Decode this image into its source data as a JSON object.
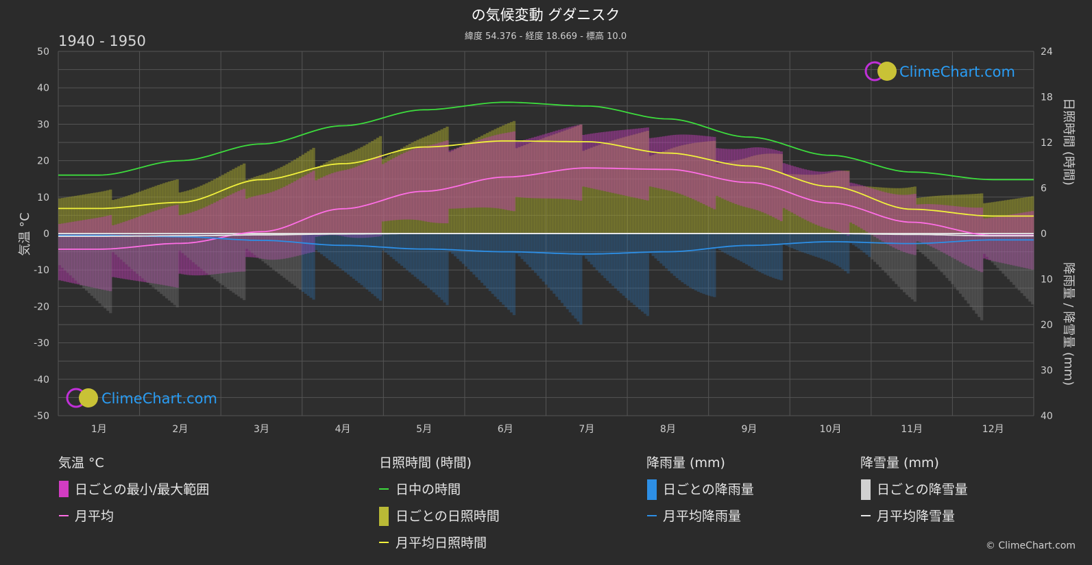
{
  "header": {
    "title": "の気候変動 グダニスク",
    "subtitle": "緯度 54.376 - 経度 18.669 - 標高 10.0",
    "period": "1940 - 1950"
  },
  "axes": {
    "left_title": "気温 °C",
    "right_top_title": "日照時間 (時間)",
    "right_bottom_title": "降雨量 / 降雪量 (mm)",
    "left_ticks": [
      "50",
      "40",
      "30",
      "20",
      "10",
      "0",
      "-10",
      "-20",
      "-30",
      "-40",
      "-50"
    ],
    "right_top_ticks": [
      "24",
      "18",
      "12",
      "6",
      "0"
    ],
    "right_bottom_ticks": [
      "10",
      "20",
      "30",
      "40"
    ]
  },
  "brand": {
    "name": "ClimeChart.com",
    "copyright": "© ClimeChart.com"
  },
  "legend": {
    "temperature": {
      "heading": "気温 °C",
      "daily_range": "日ごとの最小/最大範囲",
      "monthly_avg": "月平均"
    },
    "sunshine": {
      "heading": "日照時間 (時間)",
      "daylight": "日中の時間",
      "daily_sunshine": "日ごとの日照時間",
      "monthly_avg_sunshine": "月平均日照時間"
    },
    "rain": {
      "heading": "降雨量 (mm)",
      "daily_rain": "日ごとの降雨量",
      "monthly_avg_rain": "月平均降雨量"
    },
    "snow": {
      "heading": "降雪量 (mm)",
      "daily_snow": "日ごとの降雪量",
      "monthly_avg_snow": "月平均降雪量"
    }
  },
  "colors": {
    "background": "#2b2b2b",
    "daylight": "#3ddc3d",
    "sunshine_avg": "#f2f23c",
    "sunshine_band": "#9c9c2e",
    "temp_avg": "#ff6ee6",
    "temp_band": "#c23db5",
    "rain_avg": "#2d8fe6",
    "rain_band": "#2a6fae",
    "snow_avg": "#e8e8e8",
    "snow_band": "#7a7a7a",
    "brand": "#2a9df4"
  },
  "chart_data": {
    "type": "area",
    "categories": [
      "1月",
      "2月",
      "3月",
      "4月",
      "5月",
      "6月",
      "7月",
      "8月",
      "9月",
      "10月",
      "11月",
      "12月"
    ],
    "temperature_axis": {
      "unit": "°C",
      "ylim": [
        -50,
        50
      ]
    },
    "sunshine_axis": {
      "unit": "時間",
      "ylim": [
        0,
        24
      ]
    },
    "precipitation_axis": {
      "unit": "mm",
      "ylim": [
        0,
        40
      ],
      "inverted": true
    },
    "grid": true,
    "series": [
      {
        "name": "日中の時間",
        "axis": "sunshine",
        "values": [
          7.7,
          9.6,
          11.8,
          14.2,
          16.3,
          17.3,
          16.8,
          15.1,
          12.7,
          10.3,
          8.1,
          7.1
        ]
      },
      {
        "name": "月平均日照時間",
        "axis": "sunshine",
        "values": [
          3.3,
          4.1,
          7.1,
          9.2,
          11.4,
          12.2,
          12.1,
          10.6,
          8.9,
          6.2,
          3.2,
          2.3
        ]
      },
      {
        "name": "月平均",
        "axis": "temperature",
        "values": [
          -4.3,
          -2.7,
          0.5,
          6.8,
          11.6,
          15.5,
          18.0,
          17.6,
          14.0,
          8.4,
          3.1,
          -0.5
        ]
      },
      {
        "name": "月平均降雨量",
        "axis": "precipitation",
        "values": [
          0.4,
          0.7,
          1.5,
          2.6,
          3.4,
          4.0,
          4.5,
          4.0,
          2.6,
          1.8,
          2.2,
          1.4
        ]
      },
      {
        "name": "月平均降雪量",
        "axis": "precipitation",
        "values": [
          0.6,
          0.5,
          0.3,
          0.1,
          0.0,
          0.0,
          0.0,
          0.0,
          0.0,
          0.0,
          0.2,
          0.5
        ]
      }
    ],
    "daily_temperature_range": {
      "min": [
        -12,
        -11,
        -6,
        1,
        6,
        10,
        13,
        13,
        9,
        4,
        -2,
        -7
      ],
      "max": [
        2,
        5,
        10,
        16,
        22,
        25,
        27,
        26,
        22,
        15,
        8,
        4
      ]
    },
    "daily_sunshine_envelope": [
      12,
      15,
      20,
      25,
      29,
      31,
      30,
      28,
      24,
      18,
      13,
      11
    ]
  }
}
